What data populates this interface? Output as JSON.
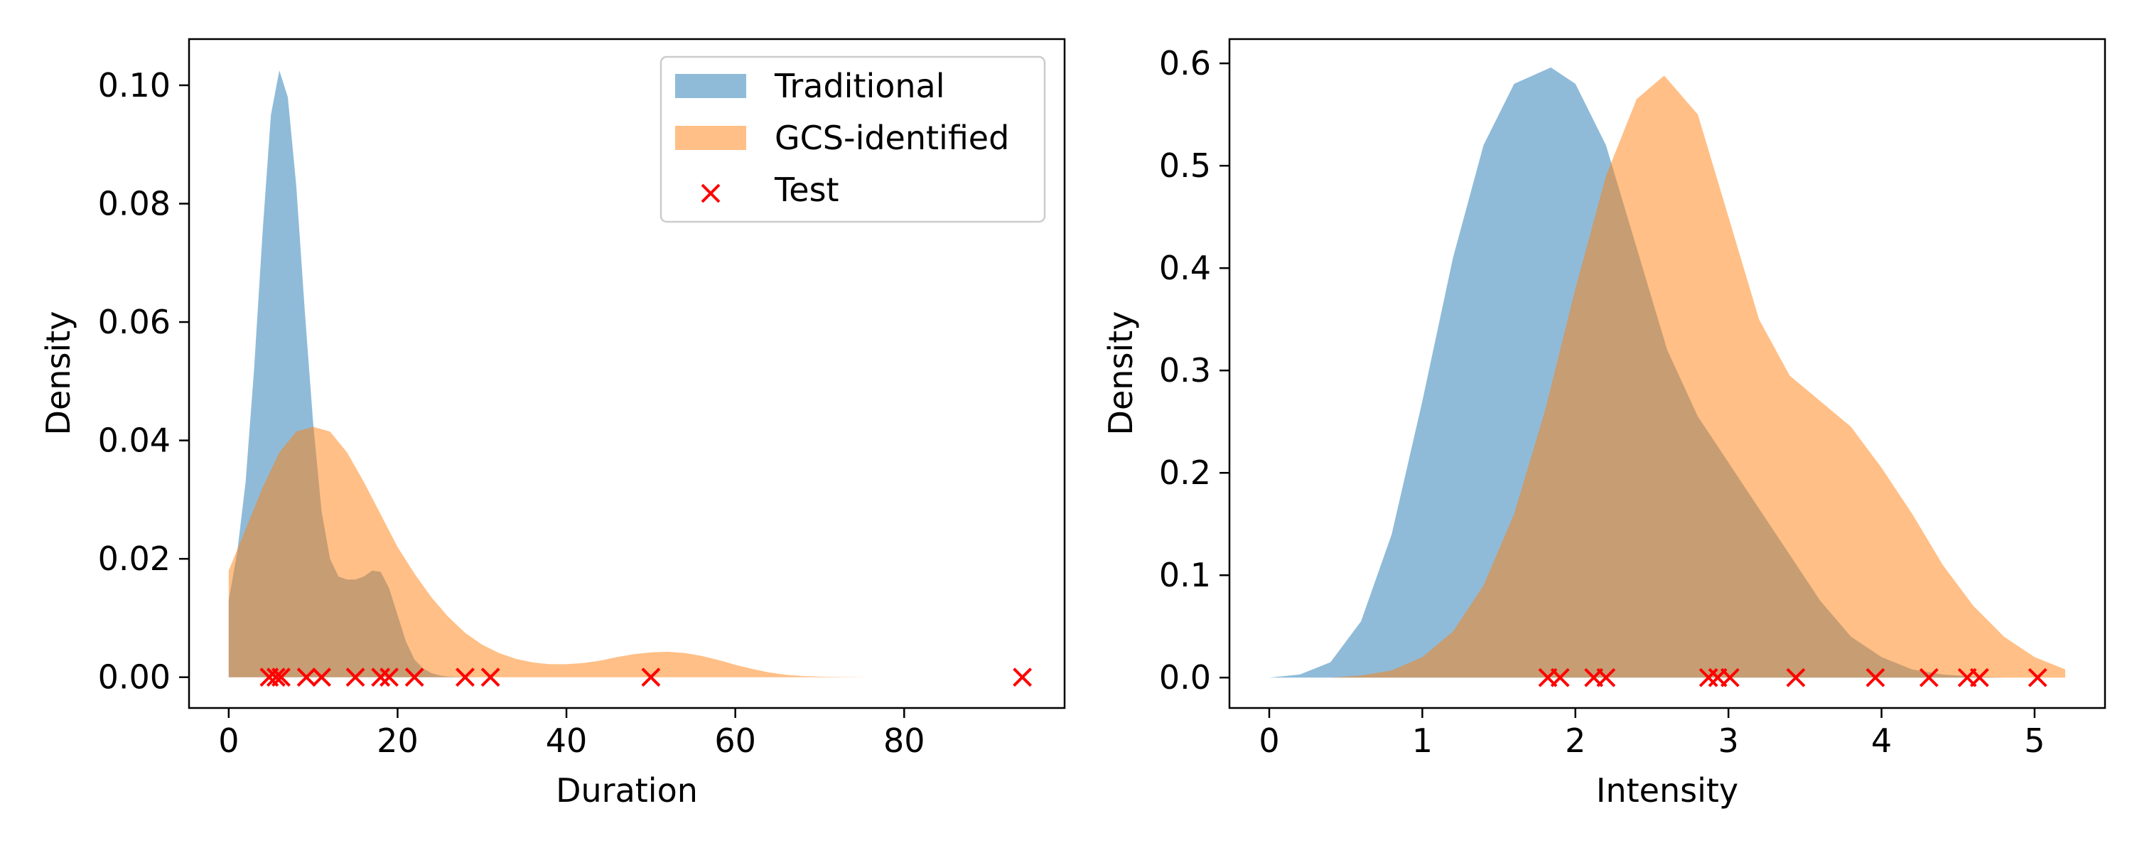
{
  "legend": {
    "placement": "upper right",
    "entries": [
      {
        "label": "Traditional",
        "kind": "area",
        "color": "#1f77b4",
        "alpha": 0.5
      },
      {
        "label": "GCS-identified",
        "kind": "area",
        "color": "#ff7f0e",
        "alpha": 0.5
      },
      {
        "label": "Test",
        "kind": "marker",
        "color": "#ff0000"
      }
    ]
  },
  "chart_data": [
    {
      "type": "area",
      "xlabel": "Duration",
      "ylabel": "Density",
      "xlim": [
        -4.7,
        99
      ],
      "ylim": [
        -0.0052,
        0.1078
      ],
      "xticks": [
        0,
        20,
        40,
        60,
        80
      ],
      "xtick_labels": [
        "0",
        "20",
        "40",
        "60",
        "80"
      ],
      "yticks": [
        0.0,
        0.02,
        0.04,
        0.06,
        0.08,
        0.1
      ],
      "ytick_labels": [
        "0.00",
        "0.02",
        "0.04",
        "0.06",
        "0.08",
        "0.10"
      ],
      "grid": false,
      "series": [
        {
          "name": "Traditional",
          "color": "#1f77b4",
          "x": [
            0,
            1,
            2,
            3,
            4,
            5,
            6,
            7,
            8,
            9,
            10,
            11,
            12,
            13,
            14,
            15,
            16,
            17,
            18,
            19,
            20,
            21,
            22,
            23,
            24,
            25,
            26,
            27,
            28,
            30,
            35,
            40,
            50,
            60,
            80
          ],
          "y": [
            0.013,
            0.021,
            0.033,
            0.052,
            0.075,
            0.095,
            0.1025,
            0.098,
            0.083,
            0.062,
            0.043,
            0.028,
            0.02,
            0.017,
            0.0165,
            0.0165,
            0.017,
            0.018,
            0.0178,
            0.015,
            0.0105,
            0.006,
            0.003,
            0.0015,
            0.0007,
            0.0003,
            0.0001,
            5e-05,
            2e-05,
            0.0,
            0.0,
            0.0,
            0.0,
            0.0,
            0.0
          ]
        },
        {
          "name": "GCS-identified",
          "color": "#ff7f0e",
          "x": [
            0,
            2,
            4,
            6,
            8,
            10,
            12,
            14,
            16,
            18,
            20,
            22,
            24,
            26,
            28,
            30,
            32,
            34,
            36,
            38,
            40,
            42,
            44,
            46,
            48,
            50,
            52,
            54,
            56,
            58,
            60,
            62,
            64,
            66,
            68,
            70,
            72,
            76,
            80
          ],
          "y": [
            0.018,
            0.025,
            0.032,
            0.038,
            0.0415,
            0.0423,
            0.0415,
            0.038,
            0.033,
            0.0275,
            0.022,
            0.0175,
            0.0135,
            0.0102,
            0.0075,
            0.0055,
            0.0041,
            0.0031,
            0.0025,
            0.0022,
            0.0022,
            0.0024,
            0.0028,
            0.0034,
            0.0039,
            0.0042,
            0.0043,
            0.0041,
            0.0036,
            0.0029,
            0.0021,
            0.0014,
            0.0008,
            0.0004,
            0.0002,
            0.0001,
            5e-05,
            0.0,
            0.0
          ]
        }
      ],
      "markers": {
        "name": "Test",
        "color": "#ff0000",
        "x": [
          4.8,
          5.6,
          6.2,
          9.2,
          11,
          15,
          18,
          19,
          22,
          28,
          31,
          50,
          94
        ],
        "y": [
          0,
          0,
          0,
          0,
          0,
          0,
          0,
          0,
          0,
          0,
          0,
          0,
          0
        ]
      }
    },
    {
      "type": "area",
      "xlabel": "Intensity",
      "ylabel": "Density",
      "xlim": [
        -0.26,
        5.46
      ],
      "ylim": [
        -0.0297,
        0.6237
      ],
      "xticks": [
        0,
        1,
        2,
        3,
        4,
        5
      ],
      "xtick_labels": [
        "0",
        "1",
        "2",
        "3",
        "4",
        "5"
      ],
      "yticks": [
        0.0,
        0.1,
        0.2,
        0.3,
        0.4,
        0.5,
        0.6
      ],
      "ytick_labels": [
        "0.0",
        "0.1",
        "0.2",
        "0.3",
        "0.4",
        "0.5",
        "0.6"
      ],
      "grid": false,
      "series": [
        {
          "name": "Traditional",
          "color": "#1f77b4",
          "x": [
            0,
            0.2,
            0.4,
            0.6,
            0.8,
            1.0,
            1.2,
            1.4,
            1.6,
            1.84,
            2.0,
            2.2,
            2.4,
            2.6,
            2.8,
            3.0,
            3.2,
            3.4,
            3.6,
            3.8,
            4.0,
            4.2,
            4.4,
            4.6,
            4.8,
            5.0,
            5.2
          ],
          "y": [
            0.0,
            0.003,
            0.015,
            0.055,
            0.14,
            0.27,
            0.41,
            0.52,
            0.58,
            0.596,
            0.58,
            0.52,
            0.42,
            0.32,
            0.255,
            0.21,
            0.165,
            0.12,
            0.075,
            0.04,
            0.02,
            0.008,
            0.003,
            0.001,
            0.0,
            0.0,
            0.0
          ]
        },
        {
          "name": "GCS-identified",
          "color": "#ff7f0e",
          "x": [
            0.4,
            0.6,
            0.8,
            1.0,
            1.2,
            1.4,
            1.6,
            1.8,
            2.0,
            2.2,
            2.4,
            2.58,
            2.8,
            3.0,
            3.2,
            3.4,
            3.6,
            3.8,
            4.0,
            4.2,
            4.4,
            4.6,
            4.8,
            5.0,
            5.2
          ],
          "y": [
            0.0,
            0.002,
            0.007,
            0.02,
            0.045,
            0.09,
            0.16,
            0.26,
            0.38,
            0.49,
            0.565,
            0.588,
            0.55,
            0.45,
            0.35,
            0.295,
            0.27,
            0.245,
            0.205,
            0.16,
            0.11,
            0.07,
            0.04,
            0.02,
            0.008
          ]
        }
      ],
      "markers": {
        "name": "Test",
        "color": "#ff0000",
        "x": [
          1.82,
          1.9,
          2.12,
          2.2,
          2.87,
          2.93,
          3.01,
          3.44,
          3.96,
          4.31,
          4.56,
          4.64,
          5.02
        ],
        "y": [
          0,
          0,
          0,
          0,
          0,
          0,
          0,
          0,
          0,
          0,
          0,
          0,
          0
        ]
      }
    }
  ]
}
